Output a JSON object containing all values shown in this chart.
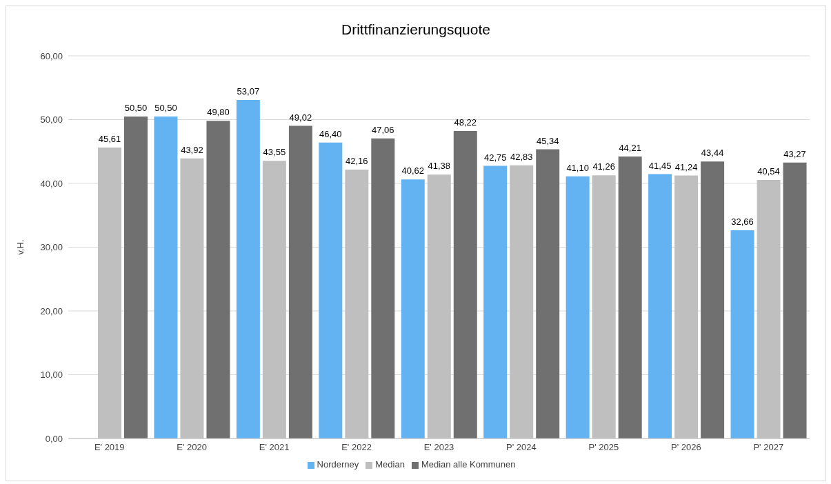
{
  "chart_data": {
    "type": "bar",
    "title": "Drittfinanzierungsquote",
    "ylabel": "v.H.",
    "categories": [
      "E' 2019",
      "E' 2020",
      "E' 2021",
      "E' 2022",
      "E' 2023",
      "P' 2024",
      "P' 2025",
      "P' 2026",
      "P' 2027"
    ],
    "series": [
      {
        "name": "Norderney",
        "color": "#63b3f3",
        "values": [
          null,
          50.5,
          53.07,
          46.4,
          40.62,
          42.75,
          41.1,
          41.45,
          32.66
        ],
        "value_labels": [
          null,
          "50,50",
          "53,07",
          "46,40",
          "40,62",
          "42,75",
          "41,10",
          "41,45",
          "32,66"
        ]
      },
      {
        "name": "Median",
        "color": "#bfbfbf",
        "values": [
          45.61,
          43.92,
          43.55,
          42.16,
          41.38,
          42.83,
          41.26,
          41.24,
          40.54
        ],
        "value_labels": [
          "45,61",
          "43,92",
          "43,55",
          "42,16",
          "41,38",
          "42,83",
          "41,26",
          "41,24",
          "40,54"
        ]
      },
      {
        "name": "Median alle Kommunen",
        "color": "#707070",
        "values": [
          50.5,
          49.8,
          49.02,
          47.06,
          48.22,
          45.34,
          44.21,
          43.44,
          43.27
        ],
        "value_labels": [
          "50,50",
          "49,80",
          "49,02",
          "47,06",
          "48,22",
          "45,34",
          "44,21",
          "43,44",
          "43,27"
        ]
      }
    ],
    "ylim": [
      0,
      60
    ],
    "yticks": [
      {
        "value": 0,
        "label": "0,00"
      },
      {
        "value": 10,
        "label": "10,00"
      },
      {
        "value": 20,
        "label": "20,00"
      },
      {
        "value": 30,
        "label": "30,00"
      },
      {
        "value": 40,
        "label": "40,00"
      },
      {
        "value": 50,
        "label": "50,00"
      },
      {
        "value": 60,
        "label": "60,00"
      }
    ],
    "grid": "y",
    "legend": "bottom"
  }
}
